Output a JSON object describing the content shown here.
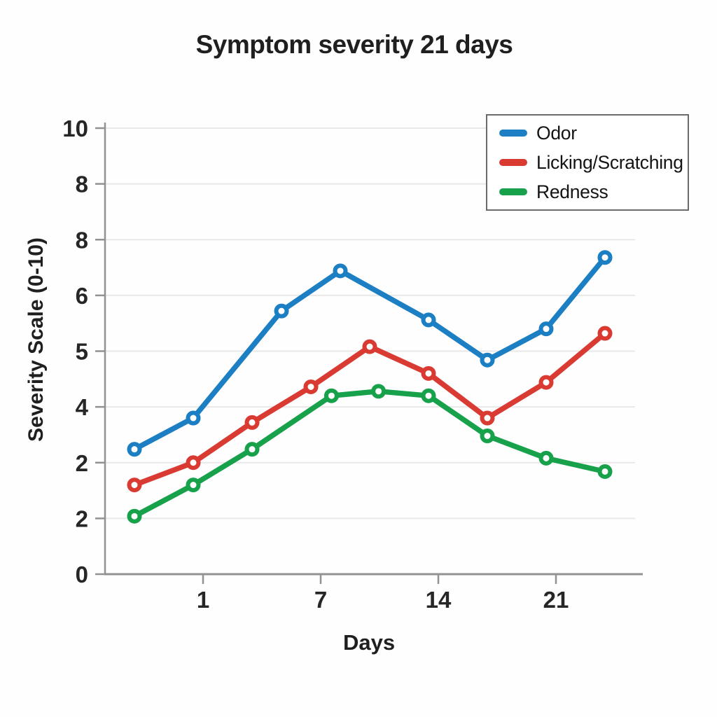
{
  "chart_data": {
    "type": "line",
    "title": "Symptom severity 21 days",
    "xlabel": "Days",
    "ylabel": "Severity Scale (0-10)",
    "grid": true,
    "x_axis": {
      "tick_labels": [
        "1",
        "7",
        "14",
        "21"
      ],
      "tick_slots": [
        1,
        3,
        5,
        7
      ],
      "slot_count": 9
    },
    "y_axis": {
      "tick_labels_top_to_bottom": [
        "10",
        "8",
        "8",
        "6",
        "5",
        "4",
        "2",
        "2",
        "0"
      ],
      "value_range": [
        0,
        10
      ]
    },
    "legend": {
      "position": "top-right",
      "entries": [
        "Odor",
        "Licking/Scratching",
        "Redness"
      ]
    },
    "series": [
      {
        "name": "Odor",
        "color": "#1c7ec3",
        "points": [
          {
            "slot": 0,
            "value": 2.8
          },
          {
            "slot": 1,
            "value": 3.5
          },
          {
            "slot": 2.5,
            "value": 5.9
          },
          {
            "slot": 3.5,
            "value": 6.8
          },
          {
            "slot": 5,
            "value": 5.7
          },
          {
            "slot": 6,
            "value": 4.8
          },
          {
            "slot": 7,
            "value": 5.5
          },
          {
            "slot": 8,
            "value": 7.1
          }
        ]
      },
      {
        "name": "Licking/Scratching",
        "color": "#d93a32",
        "points": [
          {
            "slot": 0,
            "value": 2.0
          },
          {
            "slot": 1,
            "value": 2.5
          },
          {
            "slot": 2,
            "value": 3.4
          },
          {
            "slot": 3,
            "value": 4.2
          },
          {
            "slot": 4,
            "value": 5.1
          },
          {
            "slot": 5,
            "value": 4.5
          },
          {
            "slot": 6,
            "value": 3.5
          },
          {
            "slot": 7,
            "value": 4.3
          },
          {
            "slot": 8,
            "value": 5.4
          }
        ]
      },
      {
        "name": "Redness",
        "color": "#17a14b",
        "points": [
          {
            "slot": 0,
            "value": 1.3
          },
          {
            "slot": 1,
            "value": 2.0
          },
          {
            "slot": 2,
            "value": 2.8
          },
          {
            "slot": 3.35,
            "value": 4.0
          },
          {
            "slot": 4.15,
            "value": 4.1
          },
          {
            "slot": 5,
            "value": 4.0
          },
          {
            "slot": 6,
            "value": 3.1
          },
          {
            "slot": 7,
            "value": 2.6
          },
          {
            "slot": 8,
            "value": 2.3
          }
        ]
      }
    ],
    "style": {
      "background": "#fefefe",
      "grid_color": "#e8e8e8",
      "axis_color": "#929292",
      "tick_text_color": "#262626",
      "title_color": "#1f1f1f",
      "legend_border_color": "#6b6b6b",
      "marker_fill": "#ffffff"
    }
  }
}
